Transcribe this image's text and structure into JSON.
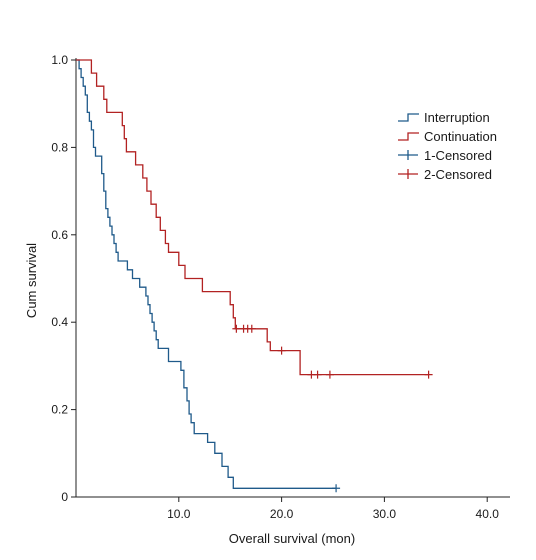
{
  "chart_data": {
    "type": "line",
    "subtype": "kaplan-meier-step",
    "xlabel": "Overall survival (mon)",
    "ylabel": "Cum survival",
    "xlim": [
      0,
      42
    ],
    "ylim": [
      0,
      1.0
    ],
    "x_ticks": [
      10,
      20,
      30,
      40
    ],
    "x_tick_labels": [
      "10.0",
      "20.0",
      "30.0",
      "40.0"
    ],
    "y_ticks": [
      0,
      0.2,
      0.4,
      0.6,
      0.8,
      1.0
    ],
    "y_tick_labels": [
      "0",
      "0.2",
      "0.4",
      "0.6",
      "0.8",
      "1.0"
    ],
    "grid": false,
    "legend_position": "top-right",
    "legend": [
      {
        "label": "Interruption",
        "color": "#1f5a8a",
        "marker": "step"
      },
      {
        "label": "Continuation",
        "color": "#b22222",
        "marker": "step"
      },
      {
        "label": "1-Censored",
        "color": "#1f5a8a",
        "marker": "plus"
      },
      {
        "label": "2-Censored",
        "color": "#b22222",
        "marker": "plus"
      }
    ],
    "series": [
      {
        "name": "Interruption",
        "color": "#1f5a8a",
        "steps": [
          [
            0,
            1.0
          ],
          [
            0.3,
            0.98
          ],
          [
            0.5,
            0.96
          ],
          [
            0.7,
            0.94
          ],
          [
            0.9,
            0.92
          ],
          [
            1.1,
            0.88
          ],
          [
            1.3,
            0.86
          ],
          [
            1.5,
            0.84
          ],
          [
            1.7,
            0.8
          ],
          [
            1.9,
            0.78
          ],
          [
            2.5,
            0.74
          ],
          [
            2.7,
            0.7
          ],
          [
            2.9,
            0.66
          ],
          [
            3.1,
            0.64
          ],
          [
            3.3,
            0.62
          ],
          [
            3.5,
            0.6
          ],
          [
            3.7,
            0.58
          ],
          [
            3.9,
            0.56
          ],
          [
            4.1,
            0.54
          ],
          [
            5.0,
            0.52
          ],
          [
            5.5,
            0.5
          ],
          [
            6.2,
            0.48
          ],
          [
            6.8,
            0.46
          ],
          [
            7.0,
            0.44
          ],
          [
            7.2,
            0.42
          ],
          [
            7.4,
            0.4
          ],
          [
            7.6,
            0.38
          ],
          [
            7.8,
            0.36
          ],
          [
            8.0,
            0.34
          ],
          [
            9.0,
            0.31
          ],
          [
            10.2,
            0.29
          ],
          [
            10.5,
            0.25
          ],
          [
            10.8,
            0.22
          ],
          [
            11.0,
            0.19
          ],
          [
            11.2,
            0.17
          ],
          [
            11.5,
            0.145
          ],
          [
            12.8,
            0.125
          ],
          [
            13.5,
            0.1
          ],
          [
            14.2,
            0.07
          ],
          [
            14.8,
            0.045
          ],
          [
            15.3,
            0.02
          ],
          [
            25.3,
            0.02
          ]
        ],
        "censored": [
          [
            25.3,
            0.02
          ]
        ]
      },
      {
        "name": "Continuation",
        "color": "#b22222",
        "steps": [
          [
            0,
            1.0
          ],
          [
            1.5,
            0.97
          ],
          [
            2.0,
            0.94
          ],
          [
            2.7,
            0.91
          ],
          [
            3.0,
            0.88
          ],
          [
            4.5,
            0.85
          ],
          [
            4.7,
            0.82
          ],
          [
            4.9,
            0.79
          ],
          [
            5.8,
            0.76
          ],
          [
            6.5,
            0.73
          ],
          [
            6.9,
            0.7
          ],
          [
            7.3,
            0.67
          ],
          [
            7.8,
            0.64
          ],
          [
            8.2,
            0.61
          ],
          [
            8.7,
            0.58
          ],
          [
            9.0,
            0.56
          ],
          [
            10.0,
            0.53
          ],
          [
            10.6,
            0.5
          ],
          [
            12.3,
            0.47
          ],
          [
            15.0,
            0.44
          ],
          [
            15.3,
            0.41
          ],
          [
            15.5,
            0.385
          ],
          [
            18.6,
            0.355
          ],
          [
            18.9,
            0.335
          ],
          [
            21.8,
            0.28
          ],
          [
            34.3,
            0.28
          ]
        ],
        "censored": [
          [
            15.6,
            0.385
          ],
          [
            16.3,
            0.385
          ],
          [
            16.7,
            0.385
          ],
          [
            17.1,
            0.385
          ],
          [
            20.0,
            0.335
          ],
          [
            22.9,
            0.28
          ],
          [
            23.5,
            0.28
          ],
          [
            24.7,
            0.28
          ],
          [
            34.3,
            0.28
          ]
        ]
      }
    ]
  }
}
